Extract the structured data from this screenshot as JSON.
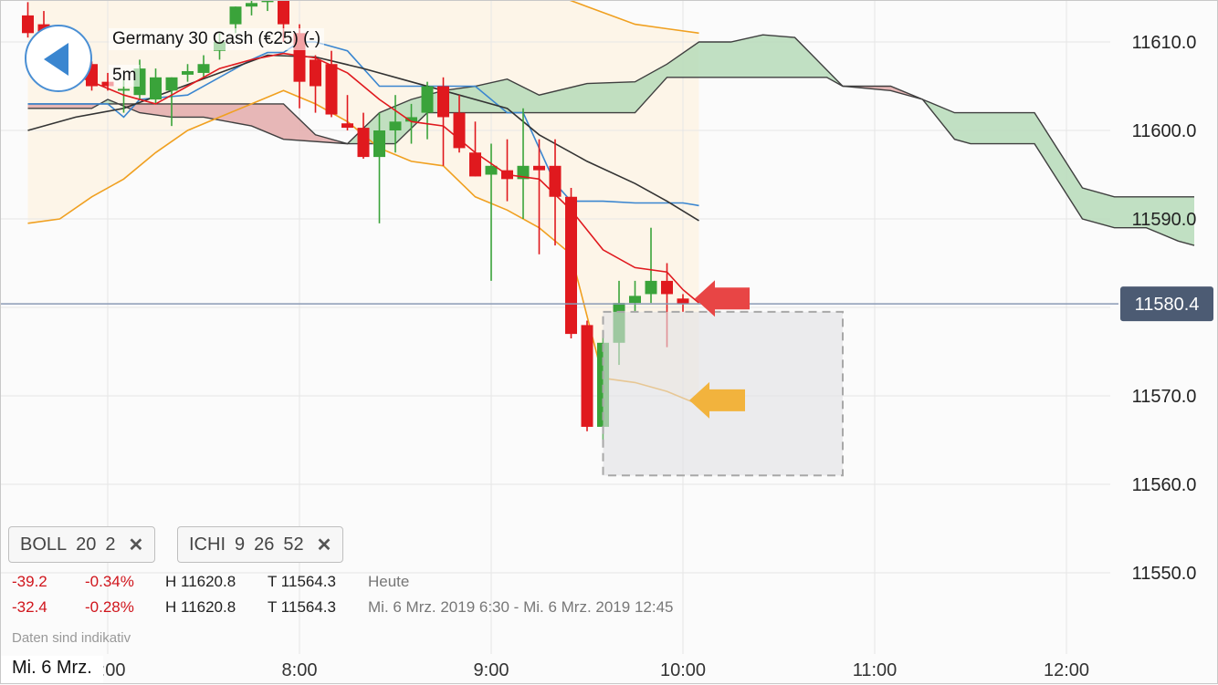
{
  "header": {
    "title": "Germany 30 Cash (€25) (-)",
    "interval": "5m"
  },
  "indicators": [
    {
      "name": "BOLL",
      "params": [
        "20",
        "2"
      ]
    },
    {
      "name": "ICHI",
      "params": [
        "9",
        "26",
        "52"
      ]
    }
  ],
  "stats": {
    "row1": {
      "change": "-39.2",
      "pct": "-0.34%",
      "high": "H 11620.8",
      "low": "T 11564.3",
      "period": "Heute"
    },
    "row2": {
      "change": "-32.4",
      "pct": "-0.28%",
      "high": "H 11620.8",
      "low": "T 11564.3",
      "period": "Mi. 6 Mrz. 2019 6:30 - Mi. 6 Mrz. 2019 12:45"
    }
  },
  "footer": {
    "note": "Daten sind indikativ",
    "date_label": "Mi. 6 Mrz."
  },
  "colors": {
    "up": "#3aa33a",
    "down": "#e0191e",
    "bollinger": "#f0a020",
    "kumo_bull": "#b6dab8",
    "kumo_bear": "#e3aaaa",
    "price_label_bg": "#4c5b73",
    "arrow_red": "#e84545",
    "arrow_orange": "#f2b33d"
  },
  "chart_data": {
    "type": "candlestick",
    "instrument": "Germany 30 Cash (€25)",
    "interval": "5m",
    "x_ticks": [
      "7:00",
      "8:00",
      "9:00",
      "10:00",
      "11:00",
      "12:00"
    ],
    "y_ticks": [
      11550.0,
      11560.0,
      11570.0,
      11580.0,
      11590.0,
      11600.0,
      11610.0
    ],
    "ylim": [
      11540.8,
      11614.8
    ],
    "xlim": [
      "6:34",
      "12:35"
    ],
    "current_price": 11580.4,
    "candles": [
      {
        "t": "6:35",
        "o": 11613.0,
        "h": 11614.5,
        "l": 11610.5,
        "c": 11611.0
      },
      {
        "t": "6:40",
        "o": 11612.0,
        "h": 11613.5,
        "l": 11609.0,
        "c": 11610.0
      },
      {
        "t": "6:45",
        "o": 11609.5,
        "h": 11611.0,
        "l": 11606.0,
        "c": 11608.0
      },
      {
        "t": "6:50",
        "o": 11607.5,
        "h": 11609.0,
        "l": 11606.5,
        "c": 11608.2
      },
      {
        "t": "6:55",
        "o": 11607.5,
        "h": 11607.8,
        "l": 11604.5,
        "c": 11605.0
      },
      {
        "t": "7:00",
        "o": 11605.5,
        "h": 11606.5,
        "l": 11604.5,
        "c": 11605.0
      },
      {
        "t": "7:05",
        "o": 11604.5,
        "h": 11606.0,
        "l": 11602.0,
        "c": 11604.7
      },
      {
        "t": "7:10",
        "o": 11604.0,
        "h": 11608.0,
        "l": 11603.5,
        "c": 11607.0
      },
      {
        "t": "7:15",
        "o": 11603.5,
        "h": 11607.0,
        "l": 11603.0,
        "c": 11606.0
      },
      {
        "t": "7:20",
        "o": 11604.5,
        "h": 11606.0,
        "l": 11600.5,
        "c": 11606.0
      },
      {
        "t": "7:25",
        "o": 11606.3,
        "h": 11607.5,
        "l": 11605.5,
        "c": 11606.7
      },
      {
        "t": "7:30",
        "o": 11606.5,
        "h": 11608.5,
        "l": 11606.0,
        "c": 11607.5
      },
      {
        "t": "7:35",
        "o": 11609.0,
        "h": 11611.0,
        "l": 11608.0,
        "c": 11610.0
      },
      {
        "t": "7:40",
        "o": 11612.0,
        "h": 11614.0,
        "l": 11611.0,
        "c": 11614.0
      },
      {
        "t": "7:45",
        "o": 11614.0,
        "h": 11614.8,
        "l": 11613.0,
        "c": 11614.4
      },
      {
        "t": "7:50",
        "o": 11614.5,
        "h": 11615.0,
        "l": 11613.5,
        "c": 11614.8
      },
      {
        "t": "7:55",
        "o": 11614.8,
        "h": 11615.0,
        "l": 11610.0,
        "c": 11612.0
      },
      {
        "t": "8:00",
        "o": 11611.0,
        "h": 11612.0,
        "l": 11602.5,
        "c": 11605.5
      },
      {
        "t": "8:05",
        "o": 11608.0,
        "h": 11608.5,
        "l": 11602.0,
        "c": 11605.0
      },
      {
        "t": "8:10",
        "o": 11607.5,
        "h": 11609.0,
        "l": 11601.5,
        "c": 11601.8
      },
      {
        "t": "8:15",
        "o": 11600.8,
        "h": 11604.0,
        "l": 11600.0,
        "c": 11600.3
      },
      {
        "t": "8:20",
        "o": 11600.3,
        "h": 11602.0,
        "l": 11596.8,
        "c": 11597.0
      },
      {
        "t": "8:25",
        "o": 11597.0,
        "h": 11602.0,
        "l": 11589.5,
        "c": 11600.0
      },
      {
        "t": "8:30",
        "o": 11600.0,
        "h": 11604.0,
        "l": 11597.5,
        "c": 11601.0
      },
      {
        "t": "8:35",
        "o": 11601.0,
        "h": 11603.0,
        "l": 11598.5,
        "c": 11601.5
      },
      {
        "t": "8:40",
        "o": 11602.0,
        "h": 11605.5,
        "l": 11599.0,
        "c": 11605.0
      },
      {
        "t": "8:45",
        "o": 11605.0,
        "h": 11606.0,
        "l": 11596.0,
        "c": 11601.5
      },
      {
        "t": "8:50",
        "o": 11602.0,
        "h": 11604.0,
        "l": 11597.5,
        "c": 11598.0
      },
      {
        "t": "8:55",
        "o": 11597.5,
        "h": 11601.0,
        "l": 11594.8,
        "c": 11594.8
      },
      {
        "t": "9:00",
        "o": 11595.0,
        "h": 11598.5,
        "l": 11583.0,
        "c": 11596.0
      },
      {
        "t": "9:05",
        "o": 11595.5,
        "h": 11599.0,
        "l": 11592.0,
        "c": 11594.5
      },
      {
        "t": "9:10",
        "o": 11594.5,
        "h": 11602.5,
        "l": 11590.0,
        "c": 11596.0
      },
      {
        "t": "9:15",
        "o": 11596.0,
        "h": 11599.0,
        "l": 11586.0,
        "c": 11595.5
      },
      {
        "t": "9:20",
        "o": 11596.0,
        "h": 11599.0,
        "l": 11587.0,
        "c": 11592.5
      },
      {
        "t": "9:25",
        "o": 11592.5,
        "h": 11593.5,
        "l": 11576.5,
        "c": 11577.0
      },
      {
        "t": "9:30",
        "o": 11578.0,
        "h": 11578.5,
        "l": 11566.0,
        "c": 11566.5
      },
      {
        "t": "9:35",
        "o": 11566.5,
        "h": 11577.0,
        "l": 11565.0,
        "c": 11576.0
      },
      {
        "t": "9:40",
        "o": 11576.0,
        "h": 11583.0,
        "l": 11573.5,
        "c": 11580.5
      },
      {
        "t": "9:45",
        "o": 11580.5,
        "h": 11583.0,
        "l": 11579.5,
        "c": 11581.3
      },
      {
        "t": "9:50",
        "o": 11581.5,
        "h": 11589.0,
        "l": 11580.5,
        "c": 11583.0
      },
      {
        "t": "9:55",
        "o": 11583.0,
        "h": 11585.0,
        "l": 11575.5,
        "c": 11581.5
      },
      {
        "t": "10:00",
        "o": 11581.0,
        "h": 11581.5,
        "l": 11579.5,
        "c": 11580.4
      }
    ],
    "bollinger": {
      "period": 20,
      "stddev": 2,
      "upper": [
        [
          0,
          11617
        ],
        [
          3,
          11617.5
        ],
        [
          6,
          11617
        ],
        [
          9,
          11616
        ],
        [
          12,
          11617.5
        ],
        [
          15,
          11618
        ],
        [
          17,
          11617.5
        ],
        [
          20,
          11617
        ],
        [
          23,
          11616
        ],
        [
          26,
          11619
        ],
        [
          29,
          11618
        ],
        [
          32,
          11616
        ],
        [
          35,
          11614
        ],
        [
          38,
          11612
        ],
        [
          40,
          11611.5
        ],
        [
          42,
          11611
        ]
      ],
      "middle": [
        [
          0,
          11608.5
        ],
        [
          2,
          11607
        ],
        [
          4,
          11605.5
        ],
        [
          6,
          11604
        ],
        [
          8,
          11603
        ],
        [
          10,
          11605
        ],
        [
          12,
          11607
        ],
        [
          14,
          11608
        ],
        [
          16,
          11608.7
        ],
        [
          18,
          11608.2
        ],
        [
          20,
          11606.5
        ],
        [
          22,
          11603.5
        ],
        [
          24,
          11601
        ],
        [
          26,
          11600.5
        ],
        [
          28,
          11597.5
        ],
        [
          30,
          11595
        ],
        [
          32,
          11594.5
        ],
        [
          34,
          11591
        ],
        [
          36,
          11586.5
        ],
        [
          38,
          11584.5
        ],
        [
          40,
          11584
        ],
        [
          41,
          11582
        ],
        [
          42,
          11580.5
        ]
      ],
      "lower": [
        [
          0,
          11589.5
        ],
        [
          2,
          11590
        ],
        [
          4,
          11592.5
        ],
        [
          6,
          11594.5
        ],
        [
          8,
          11597.5
        ],
        [
          10,
          11600
        ],
        [
          12,
          11601.5
        ],
        [
          14,
          11603
        ],
        [
          16,
          11604.5
        ],
        [
          18,
          11603
        ],
        [
          20,
          11601
        ],
        [
          22,
          11598
        ],
        [
          24,
          11596.5
        ],
        [
          26,
          11596
        ],
        [
          28,
          11592.5
        ],
        [
          30,
          11591
        ],
        [
          32,
          11589
        ],
        [
          34,
          11586
        ],
        [
          36,
          11572
        ],
        [
          38,
          11571.5
        ],
        [
          40,
          11570.5
        ],
        [
          42,
          11569
        ]
      ]
    },
    "ichimoku": {
      "params": [
        9,
        26,
        52
      ],
      "tenkan": [
        [
          0,
          11603
        ],
        [
          5,
          11603
        ],
        [
          6,
          11601.5
        ],
        [
          7,
          11603.5
        ],
        [
          10,
          11604
        ],
        [
          13,
          11607
        ],
        [
          14,
          11608
        ],
        [
          15,
          11608.8
        ],
        [
          16,
          11608.8
        ],
        [
          17,
          11610
        ],
        [
          18,
          11610
        ],
        [
          20,
          11609
        ],
        [
          22,
          11605
        ],
        [
          25,
          11605
        ],
        [
          28,
          11605
        ],
        [
          30,
          11602
        ],
        [
          31,
          11602
        ],
        [
          33,
          11594
        ],
        [
          34,
          11592
        ],
        [
          36,
          11592
        ],
        [
          38,
          11591.8
        ],
        [
          41,
          11591.8
        ],
        [
          42,
          11591.5
        ]
      ],
      "kijun": [
        [
          0,
          11600
        ],
        [
          3,
          11601.5
        ],
        [
          6,
          11602.5
        ],
        [
          9,
          11604.5
        ],
        [
          12,
          11606.5
        ],
        [
          15,
          11608.5
        ],
        [
          18,
          11608.3
        ],
        [
          21,
          11607
        ],
        [
          24,
          11605.5
        ],
        [
          27,
          11604
        ],
        [
          30,
          11602.5
        ],
        [
          32,
          11599.5
        ],
        [
          35,
          11596.5
        ],
        [
          38,
          11594
        ],
        [
          40,
          11592
        ],
        [
          42,
          11589.8
        ]
      ],
      "span_a": [
        [
          0,
          11602.5
        ],
        [
          4,
          11602.5
        ],
        [
          5,
          11603.5
        ],
        [
          7,
          11602
        ],
        [
          9,
          11601.5
        ],
        [
          11,
          11601.5
        ],
        [
          14,
          11600.5
        ],
        [
          16,
          11599
        ],
        [
          20,
          11598.5
        ],
        [
          22,
          11602
        ],
        [
          24,
          11603.5
        ],
        [
          26,
          11604.5
        ],
        [
          28,
          11605
        ],
        [
          30,
          11605.8
        ],
        [
          32,
          11604
        ],
        [
          35,
          11605.3
        ],
        [
          38,
          11605.5
        ],
        [
          40,
          11607.5
        ],
        [
          42,
          11610
        ],
        [
          44,
          11610
        ],
        [
          46,
          11610.8
        ],
        [
          48,
          11610.5
        ],
        [
          51,
          11605
        ],
        [
          54,
          11604.5
        ],
        [
          56,
          11603.5
        ],
        [
          58,
          11602
        ],
        [
          59,
          11602
        ],
        [
          63,
          11602
        ],
        [
          66,
          11593.5
        ],
        [
          68,
          11592.5
        ],
        [
          73,
          11592.5
        ]
      ],
      "span_b": [
        [
          0,
          11603
        ],
        [
          5,
          11603
        ],
        [
          8,
          11603
        ],
        [
          12,
          11603
        ],
        [
          16,
          11603
        ],
        [
          18,
          11599.5
        ],
        [
          20,
          11598.5
        ],
        [
          23,
          11598.5
        ],
        [
          25,
          11602
        ],
        [
          30,
          11602
        ],
        [
          35,
          11602
        ],
        [
          38,
          11602
        ],
        [
          40,
          11606
        ],
        [
          45,
          11606
        ],
        [
          50,
          11606
        ],
        [
          51,
          11605
        ],
        [
          54,
          11605
        ],
        [
          56,
          11603.5
        ],
        [
          58,
          11599
        ],
        [
          59,
          11598.5
        ],
        [
          63,
          11598.5
        ],
        [
          66,
          11590
        ],
        [
          68,
          11589
        ],
        [
          70,
          11589
        ],
        [
          72,
          11587.5
        ],
        [
          73,
          11587
        ]
      ]
    },
    "annotations": {
      "red_arrow_price": 11581.0,
      "orange_arrow_price": 11569.5,
      "zone": {
        "x_from": "9:35",
        "x_to": "10:50",
        "y_from": 11561.0,
        "y_to": 11579.5
      }
    },
    "grid": true
  }
}
